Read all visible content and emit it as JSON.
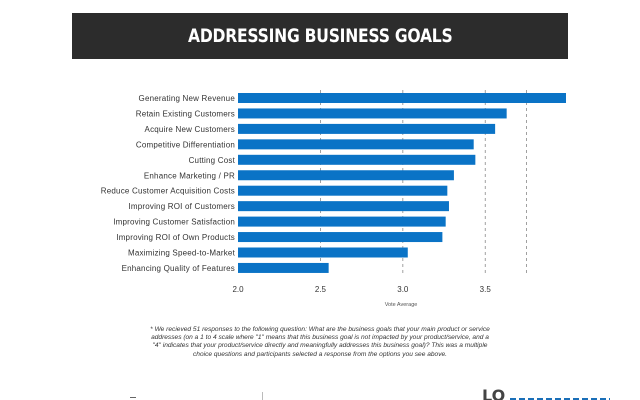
{
  "header": {
    "title": "ADDRESSING BUSINESS GOALS"
  },
  "chart_data": {
    "type": "bar",
    "orientation": "horizontal",
    "categories": [
      "Generating New Revenue",
      "Retain Existing Customers",
      "Acquire New Customers",
      "Competitive Differentiation",
      "Cutting Cost",
      "Enhance Marketing / PR",
      "Reduce Customer Acquisition Costs",
      "Improving ROI of Customers",
      "Improving Customer Satisfaction",
      "Improving ROI of Own Products",
      "Maximizing Speed-to-Market",
      "Enhancing Quality of Features"
    ],
    "values": [
      3.99,
      3.63,
      3.56,
      3.43,
      3.44,
      3.31,
      3.27,
      3.28,
      3.26,
      3.24,
      3.03,
      2.55
    ],
    "xlabel": "Vote Average",
    "ylabel": "",
    "xlim": [
      2.0,
      3.99
    ],
    "xticks": [
      "2.0",
      "2.5",
      "3.0",
      "3.5"
    ],
    "grid": "vertical dashed",
    "bar_color": "#0a73c6"
  },
  "footnote": "* We recieved 51 responses to the following question: What are the business goals that your main product or service addresses (on a 1 to 4 scale where \"1\" means that this business goal is not impacted by your product/service, and a \"4\" indicates that your product/service directly and meaningfully addresses this business goal)? This was a multiple choice questions and participants selected a response from the options you see above.",
  "brand": {
    "name": "LO"
  }
}
